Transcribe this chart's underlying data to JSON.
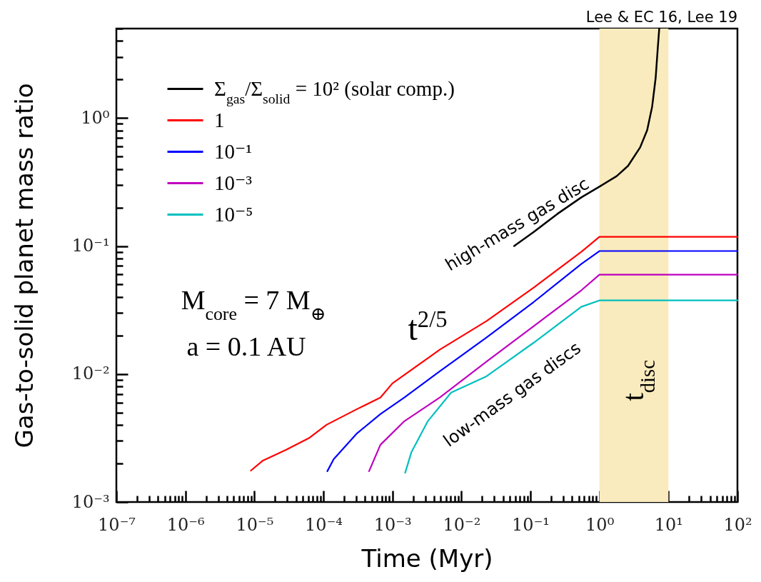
{
  "chart_data": {
    "type": "line",
    "xlabel": "Time (Myr)",
    "ylabel": "Gas-to-solid planet mass ratio",
    "log": "xy",
    "legend": "top left",
    "xlim": [
      1e-07,
      100
    ],
    "ylim": [
      0.001,
      5
    ],
    "xticks": [
      {
        "value": 1e-07,
        "label": "10⁻⁷"
      },
      {
        "value": 2e-07,
        "label": null
      },
      {
        "value": 3e-07,
        "label": null
      },
      {
        "value": 4e-07,
        "label": null
      },
      {
        "value": 5e-07,
        "label": null
      },
      {
        "value": 6e-07,
        "label": null
      },
      {
        "value": 7e-07,
        "label": null
      },
      {
        "value": 8e-07,
        "label": null
      },
      {
        "value": 9e-07,
        "label": null
      },
      {
        "value": 1e-06,
        "label": "10⁻⁶"
      },
      {
        "value": 2e-06,
        "label": null
      },
      {
        "value": 3e-06,
        "label": null
      },
      {
        "value": 4e-06,
        "label": null
      },
      {
        "value": 5e-06,
        "label": null
      },
      {
        "value": 6e-06,
        "label": null
      },
      {
        "value": 7e-06,
        "label": null
      },
      {
        "value": 8e-06,
        "label": null
      },
      {
        "value": 9e-06,
        "label": null
      },
      {
        "value": 1e-05,
        "label": "10⁻⁵"
      },
      {
        "value": 2e-05,
        "label": null
      },
      {
        "value": 3e-05,
        "label": null
      },
      {
        "value": 4e-05,
        "label": null
      },
      {
        "value": 5e-05,
        "label": null
      },
      {
        "value": 6e-05,
        "label": null
      },
      {
        "value": 7e-05,
        "label": null
      },
      {
        "value": 8e-05,
        "label": null
      },
      {
        "value": 9e-05,
        "label": null
      },
      {
        "value": 0.0001,
        "label": "10⁻⁴"
      },
      {
        "value": 0.0002,
        "label": null
      },
      {
        "value": 0.0003,
        "label": null
      },
      {
        "value": 0.0004,
        "label": null
      },
      {
        "value": 0.0005,
        "label": null
      },
      {
        "value": 0.0006,
        "label": null
      },
      {
        "value": 0.0007,
        "label": null
      },
      {
        "value": 0.0008,
        "label": null
      },
      {
        "value": 0.0009,
        "label": null
      },
      {
        "value": 0.001,
        "label": "10⁻³"
      },
      {
        "value": 0.002,
        "label": null
      },
      {
        "value": 0.003,
        "label": null
      },
      {
        "value": 0.004,
        "label": null
      },
      {
        "value": 0.005,
        "label": null
      },
      {
        "value": 0.006,
        "label": null
      },
      {
        "value": 0.007,
        "label": null
      },
      {
        "value": 0.008,
        "label": null
      },
      {
        "value": 0.009,
        "label": null
      },
      {
        "value": 0.01,
        "label": "10⁻²"
      },
      {
        "value": 0.02,
        "label": null
      },
      {
        "value": 0.03,
        "label": null
      },
      {
        "value": 0.04,
        "label": null
      },
      {
        "value": 0.05,
        "label": null
      },
      {
        "value": 0.06,
        "label": null
      },
      {
        "value": 0.07,
        "label": null
      },
      {
        "value": 0.08,
        "label": null
      },
      {
        "value": 0.09,
        "label": null
      },
      {
        "value": 0.1,
        "label": "10⁻¹"
      },
      {
        "value": 0.2,
        "label": null
      },
      {
        "value": 0.3,
        "label": null
      },
      {
        "value": 0.4,
        "label": null
      },
      {
        "value": 0.5,
        "label": null
      },
      {
        "value": 0.6,
        "label": null
      },
      {
        "value": 0.7,
        "label": null
      },
      {
        "value": 0.8,
        "label": null
      },
      {
        "value": 0.9,
        "label": null
      },
      {
        "value": 1,
        "label": "10⁰"
      },
      {
        "value": 2,
        "label": null
      },
      {
        "value": 3,
        "label": null
      },
      {
        "value": 4,
        "label": null
      },
      {
        "value": 5,
        "label": null
      },
      {
        "value": 6,
        "label": null
      },
      {
        "value": 7,
        "label": null
      },
      {
        "value": 8,
        "label": null
      },
      {
        "value": 9,
        "label": null
      },
      {
        "value": 10,
        "label": "10¹"
      },
      {
        "value": 20,
        "label": null
      },
      {
        "value": 30,
        "label": null
      },
      {
        "value": 40,
        "label": null
      },
      {
        "value": 50,
        "label": null
      },
      {
        "value": 60,
        "label": null
      },
      {
        "value": 70,
        "label": null
      },
      {
        "value": 80,
        "label": null
      },
      {
        "value": 90,
        "label": null
      },
      {
        "value": 100,
        "label": "10²"
      }
    ],
    "yticks": [
      {
        "value": 0.001,
        "label": "10⁻³"
      },
      {
        "value": 0.002,
        "label": null
      },
      {
        "value": 0.003,
        "label": null
      },
      {
        "value": 0.004,
        "label": null
      },
      {
        "value": 0.005,
        "label": null
      },
      {
        "value": 0.006,
        "label": null
      },
      {
        "value": 0.007,
        "label": null
      },
      {
        "value": 0.008,
        "label": null
      },
      {
        "value": 0.009,
        "label": null
      },
      {
        "value": 0.01,
        "label": "10⁻²"
      },
      {
        "value": 0.02,
        "label": null
      },
      {
        "value": 0.03,
        "label": null
      },
      {
        "value": 0.04,
        "label": null
      },
      {
        "value": 0.05,
        "label": null
      },
      {
        "value": 0.06,
        "label": null
      },
      {
        "value": 0.07,
        "label": null
      },
      {
        "value": 0.08,
        "label": null
      },
      {
        "value": 0.09,
        "label": null
      },
      {
        "value": 0.1,
        "label": "10⁻¹"
      },
      {
        "value": 0.2,
        "label": null
      },
      {
        "value": 0.3,
        "label": null
      },
      {
        "value": 0.4,
        "label": null
      },
      {
        "value": 0.5,
        "label": null
      },
      {
        "value": 0.6,
        "label": null
      },
      {
        "value": 0.7,
        "label": null
      },
      {
        "value": 0.8,
        "label": null
      },
      {
        "value": 0.9,
        "label": null
      },
      {
        "value": 1,
        "label": "10⁰"
      },
      {
        "value": 2,
        "label": null
      },
      {
        "value": 3,
        "label": null
      },
      {
        "value": 4,
        "label": null
      },
      {
        "value": 5,
        "label": null
      }
    ],
    "series": [
      {
        "name": "Σ$_{gas}$/Σ$_{solid}$ = 10² (solar comp.)",
        "color": "#000000",
        "x": [
          0.0581,
          0.112,
          0.245,
          0.547,
          1,
          1.78,
          2.6,
          3.89,
          4.92,
          5.81,
          6.53,
          7.02,
          7.36
        ],
        "values": [
          0.1,
          0.129,
          0.178,
          0.24,
          0.291,
          0.352,
          0.423,
          0.59,
          0.804,
          1.23,
          2.06,
          3.57,
          5
        ]
      },
      {
        "name": "1",
        "color": "#ff0000",
        "x": [
          8.9e-06,
          1.33e-05,
          2.9e-05,
          6.31e-05,
          0.000111,
          0.000307,
          0.00067,
          0.001,
          0.00326,
          0.00486,
          0.0231,
          0.112,
          0.547,
          1,
          100
        ],
        "values": [
          0.00176,
          0.00211,
          0.00256,
          0.00318,
          0.00401,
          0.00532,
          0.00655,
          0.00845,
          0.0133,
          0.0155,
          0.0259,
          0.0474,
          0.0902,
          0.118,
          0.118
        ]
      },
      {
        "name": "10⁻¹",
        "color": "#0000ff",
        "x": [
          0.000114,
          0.000141,
          0.000307,
          0.00067,
          0.00149,
          0.00486,
          0.0231,
          0.112,
          0.547,
          1,
          100
        ],
        "values": [
          0.00174,
          0.00216,
          0.00344,
          0.00486,
          0.00655,
          0.0105,
          0.0193,
          0.0366,
          0.0724,
          0.0914,
          0.0914
        ]
      },
      {
        "name": "10⁻³",
        "color": "#bf00bf",
        "x": [
          0.000459,
          0.00067,
          0.00149,
          0.00486,
          0.0231,
          0.112,
          0.547,
          1,
          100
        ],
        "values": [
          0.00174,
          0.0028,
          0.00428,
          0.00655,
          0.0125,
          0.0237,
          0.0451,
          0.0598,
          0.0598
        ]
      },
      {
        "name": "10⁻⁵",
        "color": "#00bfbf",
        "x": [
          0.00153,
          0.00189,
          0.00326,
          0.0071,
          0.0231,
          0.112,
          0.547,
          1,
          100
        ],
        "values": [
          0.00169,
          0.00246,
          0.00428,
          0.00716,
          0.0096,
          0.0176,
          0.0335,
          0.0376,
          0.0376
        ]
      }
    ],
    "bands": [
      {
        "axis": "x",
        "from": 1,
        "to": 10,
        "label": "t$_{disc}$",
        "color": "#f9ebbd"
      }
    ],
    "annotations": [
      "Lee & EC 16, Lee 19",
      "M$_{core}$ = 7 M$_{⊕}$",
      "a = 0.1 AU",
      "t$^{2/5}$",
      "high-mass gas disc",
      "low-mass gas discs"
    ]
  }
}
